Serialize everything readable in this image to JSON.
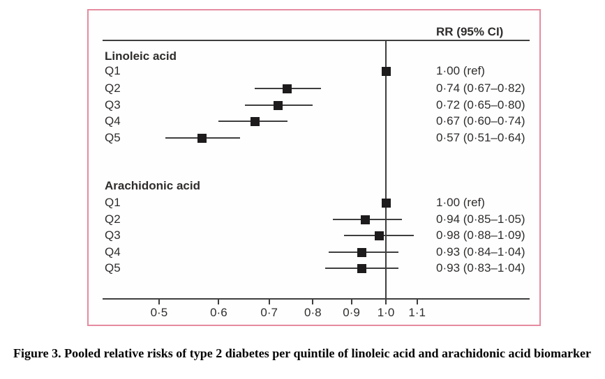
{
  "figure": {
    "caption": "Figure 3. Pooled relative risks of type 2 diabetes per quintile of linoleic acid and arachidonic acid biomarker"
  },
  "chart_data": {
    "type": "forest",
    "column_header": "RR (95% CI)",
    "x_axis": {
      "scale": "log",
      "ticks": [
        0.5,
        0.6,
        0.7,
        0.8,
        0.9,
        1.0,
        1.1
      ],
      "tick_labels": [
        "0·5",
        "0·6",
        "0·7",
        "0·8",
        "0·9",
        "1·0",
        "1·1"
      ],
      "reference_value": 1.0,
      "range": [
        0.42,
        1.55
      ]
    },
    "legend": "none",
    "grid": "off",
    "groups": [
      {
        "label": "Linoleic acid",
        "rows": [
          {
            "label": "Q1",
            "rr": 1.0,
            "ci_low": null,
            "ci_high": null,
            "rr_text": "1·00 (ref)"
          },
          {
            "label": "Q2",
            "rr": 0.74,
            "ci_low": 0.67,
            "ci_high": 0.82,
            "rr_text": "0·74 (0·67–0·82)"
          },
          {
            "label": "Q3",
            "rr": 0.72,
            "ci_low": 0.65,
            "ci_high": 0.8,
            "rr_text": "0·72 (0·65–0·80)"
          },
          {
            "label": "Q4",
            "rr": 0.67,
            "ci_low": 0.6,
            "ci_high": 0.74,
            "rr_text": "0·67 (0·60–0·74)"
          },
          {
            "label": "Q5",
            "rr": 0.57,
            "ci_low": 0.51,
            "ci_high": 0.64,
            "rr_text": "0·57 (0·51–0·64)"
          }
        ]
      },
      {
        "label": "Arachidonic acid",
        "rows": [
          {
            "label": "Q1",
            "rr": 1.0,
            "ci_low": null,
            "ci_high": null,
            "rr_text": "1·00 (ref)"
          },
          {
            "label": "Q2",
            "rr": 0.94,
            "ci_low": 0.85,
            "ci_high": 1.05,
            "rr_text": "0·94 (0·85–1·05)"
          },
          {
            "label": "Q3",
            "rr": 0.98,
            "ci_low": 0.88,
            "ci_high": 1.09,
            "rr_text": "0·98 (0·88–1·09)"
          },
          {
            "label": "Q4",
            "rr": 0.93,
            "ci_low": 0.84,
            "ci_high": 1.04,
            "rr_text": "0·93 (0·84–1·04)"
          },
          {
            "label": "Q5",
            "rr": 0.93,
            "ci_low": 0.83,
            "ci_high": 1.04,
            "rr_text": "0·93 (0·83–1·04)"
          }
        ]
      }
    ],
    "colors": {
      "border": "#e58b9f",
      "line": "#3f3e3e",
      "marker": "#1d1b1c",
      "text": "#2e2d2c"
    }
  }
}
